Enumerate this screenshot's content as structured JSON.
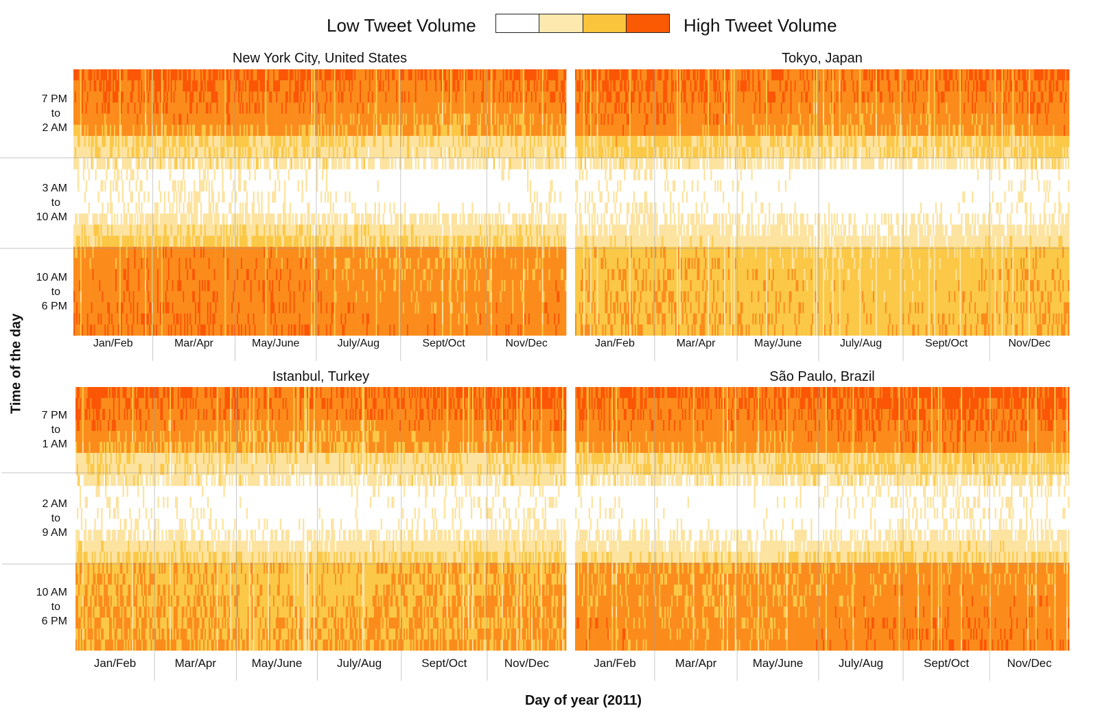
{
  "legend": {
    "low_label": "Low Tweet Volume",
    "high_label": "High Tweet Volume",
    "colors": [
      "#ffffff",
      "#fde9ae",
      "#fbc43d",
      "#fa5a04"
    ]
  },
  "axes": {
    "y_title": "Time of the day",
    "x_title": "Day of year (2011)"
  },
  "colors": {
    "level_1": "#fde3a0",
    "level_2": "#fbc847",
    "level_3": "#fb8c1c",
    "level_4": "#fb5606",
    "gridline": "#9a9a9a"
  },
  "chart_data": [
    {
      "type": "heatmap",
      "title": "New York City, United States",
      "x_tick_labels": [
        "Jan/Feb",
        "Mar/Apr",
        "May/June",
        "July/Aug",
        "Sept/Oct",
        "Nov/Dec"
      ],
      "y_tick_labels": [
        [
          "7 PM",
          "to",
          "2 AM"
        ],
        [
          "3 AM",
          "to",
          "10 AM"
        ],
        [
          "10 AM",
          "to",
          "6 PM"
        ]
      ],
      "value_scale": [
        "Low Tweet Volume",
        "High Tweet Volume"
      ],
      "pattern": {
        "night_level": 3.6,
        "morning_level": 0.1,
        "day_level": 2.9,
        "late_night_fade": 0.55,
        "morning_rise": 0.4
      }
    },
    {
      "type": "heatmap",
      "title": "Tokyo, Japan",
      "x_tick_labels": [
        "Jan/Feb",
        "Mar/Apr",
        "May/June",
        "July/Aug",
        "Sept/Oct",
        "Nov/Dec"
      ],
      "y_tick_labels": [],
      "value_scale": [
        "Low Tweet Volume",
        "High Tweet Volume"
      ],
      "pattern": {
        "night_level": 3.5,
        "morning_level": 0.05,
        "day_level": 2.0,
        "late_night_fade": 0.4,
        "morning_rise": 0.25
      }
    },
    {
      "type": "heatmap",
      "title": "Istanbul, Turkey",
      "x_tick_labels": [
        "Jan/Feb",
        "Mar/Apr",
        "May/June",
        "July/Aug",
        "Sept/Oct",
        "Nov/Dec"
      ],
      "y_tick_labels": [
        [
          "7 PM",
          "to",
          "1 AM"
        ],
        [
          "2 AM",
          "to",
          "9 AM"
        ],
        [
          "10 AM",
          "to",
          "6 PM"
        ]
      ],
      "value_scale": [
        "Low Tweet Volume",
        "High Tweet Volume"
      ],
      "pattern": {
        "night_level": 3.6,
        "morning_level": 0.1,
        "day_level": 2.3,
        "late_night_fade": 0.6,
        "morning_rise": 0.35
      }
    },
    {
      "type": "heatmap",
      "title": "São Paulo, Brazil",
      "x_tick_labels": [
        "Jan/Feb",
        "Mar/Apr",
        "May/June",
        "July/Aug",
        "Sept/Oct",
        "Nov/Dec"
      ],
      "y_tick_labels": [],
      "value_scale": [
        "Low Tweet Volume",
        "High Tweet Volume"
      ],
      "pattern": {
        "night_level": 3.7,
        "morning_level": 0.1,
        "day_level": 2.8,
        "late_night_fade": 0.5,
        "morning_rise": 0.3
      }
    }
  ]
}
